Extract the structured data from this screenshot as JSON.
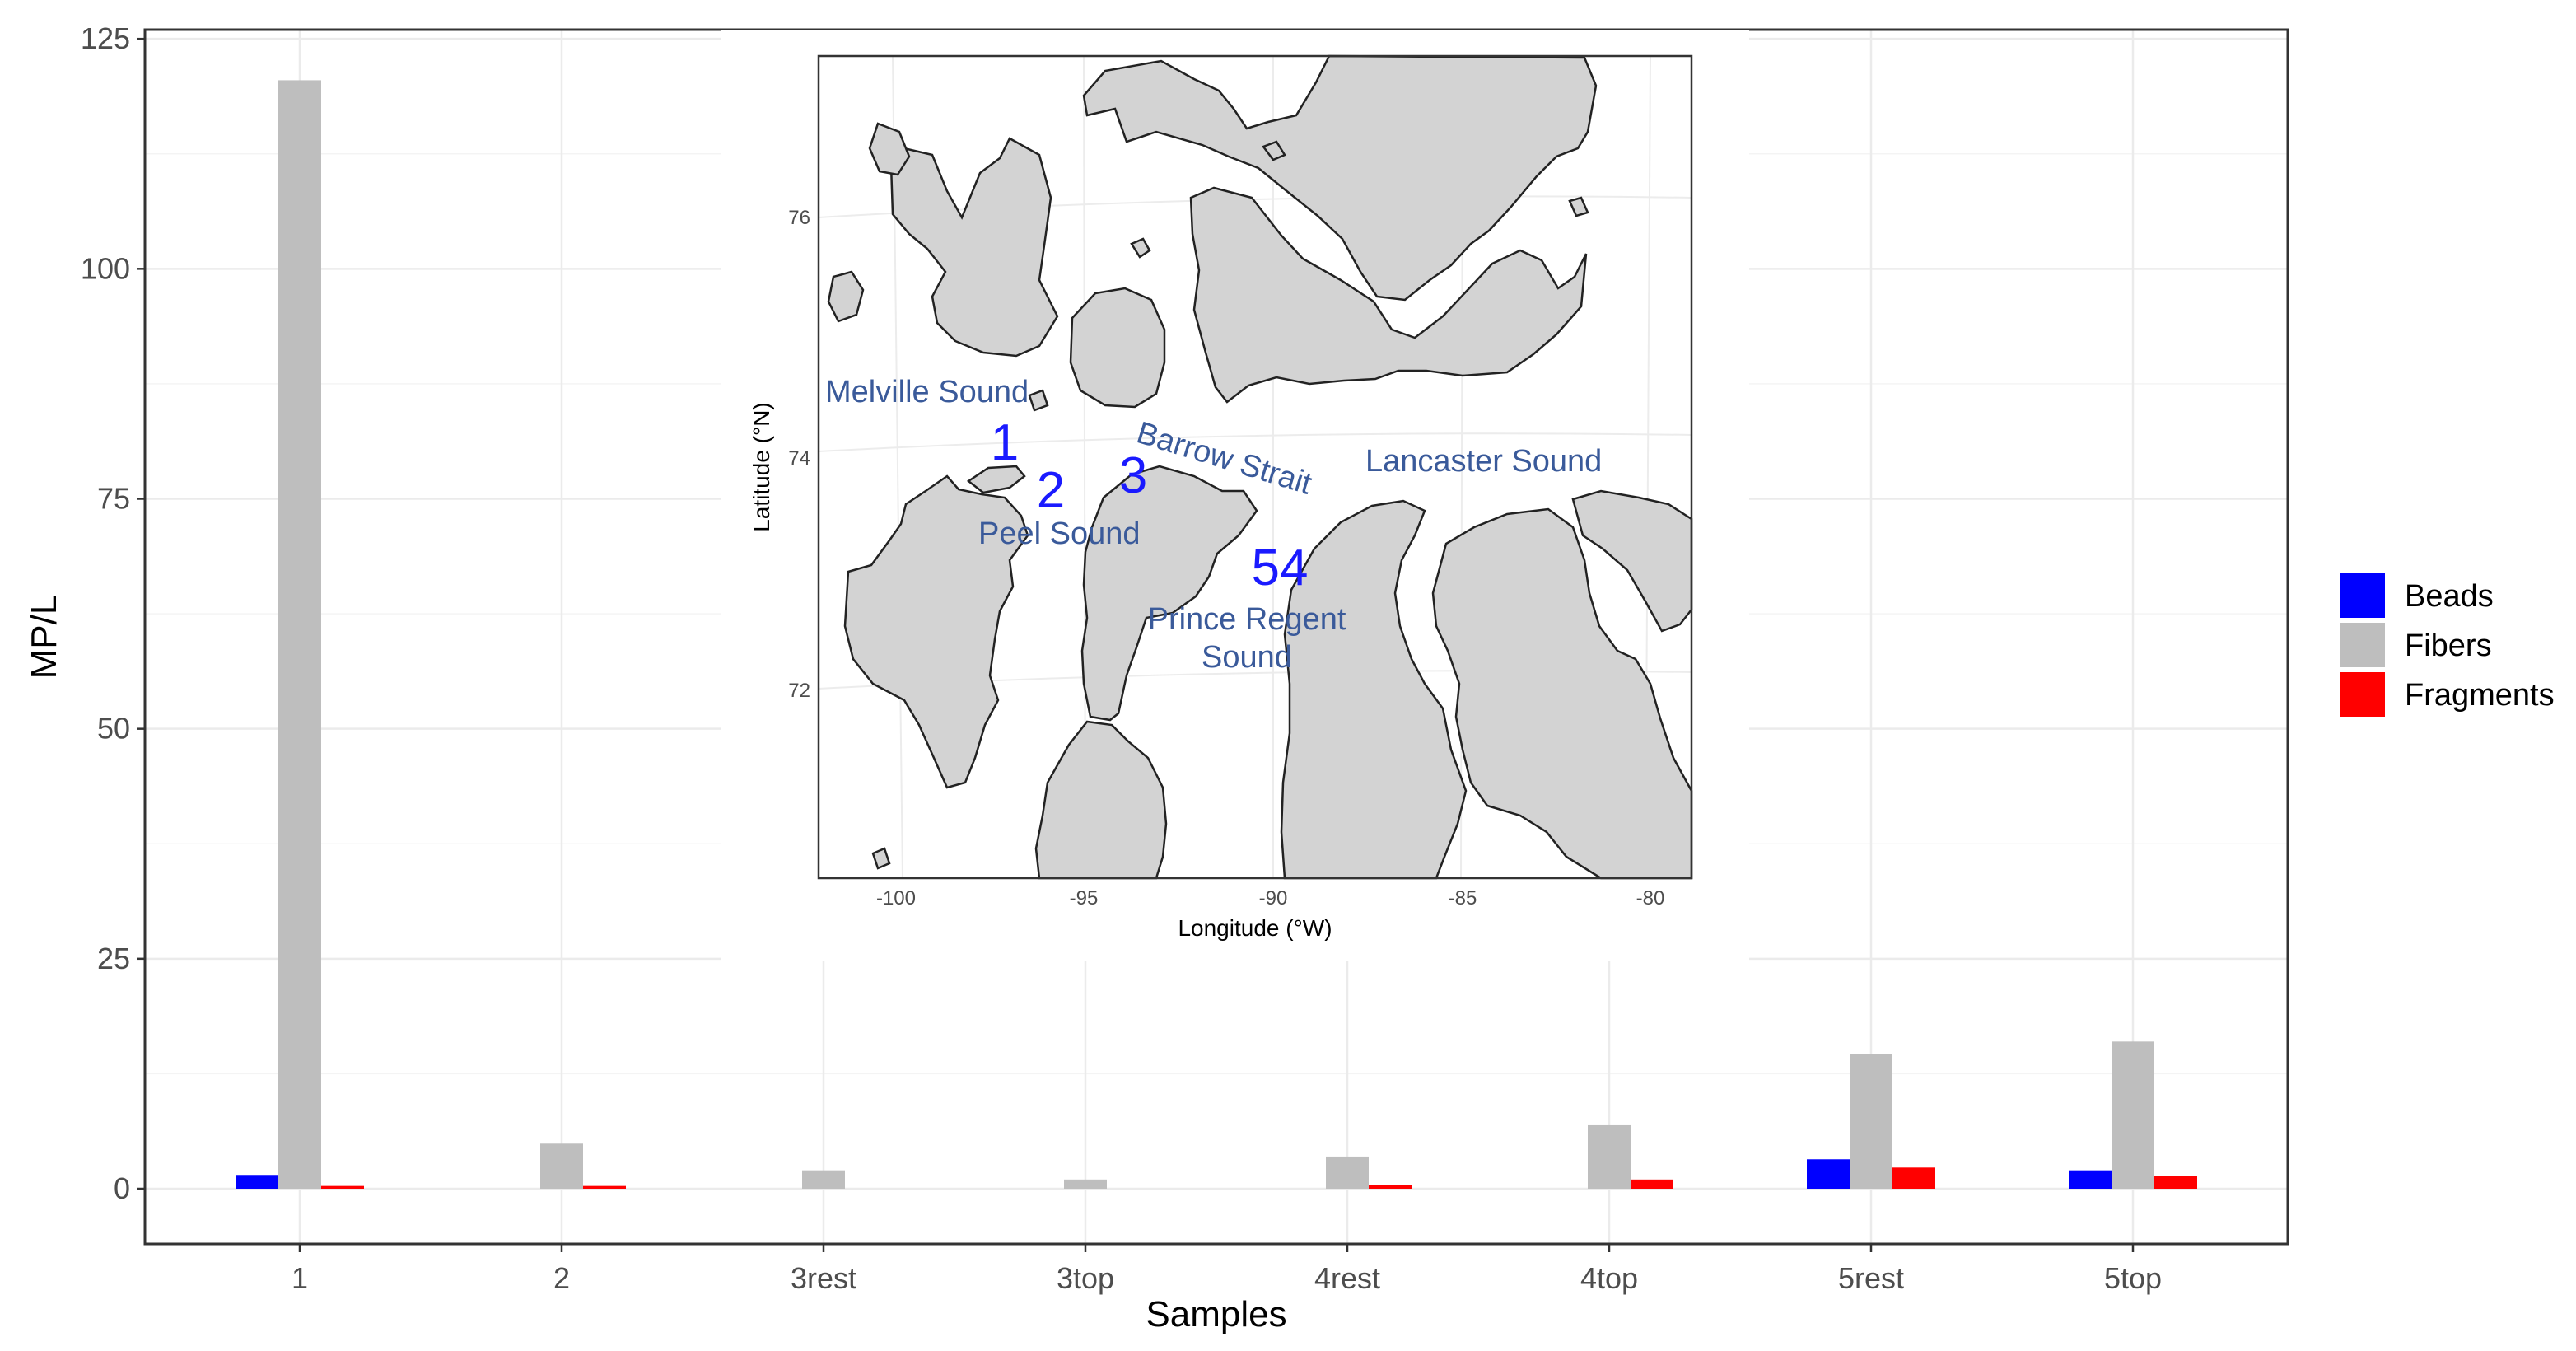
{
  "chart_data": {
    "type": "bar",
    "categories": [
      "1",
      "2",
      "3rest",
      "3top",
      "4rest",
      "4top",
      "5rest",
      "5top"
    ],
    "series": [
      {
        "name": "Beads",
        "color": "#0000ff",
        "values": [
          1.5,
          0,
          0,
          0,
          0,
          0,
          3.2,
          2.0
        ]
      },
      {
        "name": "Fibers",
        "color": "#bebebe",
        "values": [
          120.5,
          4.9,
          2.0,
          1.0,
          3.5,
          6.9,
          14.6,
          16.0
        ]
      },
      {
        "name": "Fragments",
        "color": "#ff0000",
        "values": [
          0.3,
          0.3,
          0,
          0,
          0.4,
          1.0,
          2.3,
          1.4
        ]
      }
    ],
    "xlabel": "Samples",
    "ylabel": "MP/L",
    "ylim": [
      -6,
      126
    ],
    "yticks": [
      0,
      25,
      50,
      75,
      100,
      125
    ],
    "grid": true,
    "legend_position": "right"
  },
  "inset_map": {
    "xlabel": "Longitude (°W)",
    "ylabel": "Latitude (°N)",
    "xticks": [
      "-100",
      "-95",
      "-90",
      "-85",
      "-80"
    ],
    "yticks": [
      "76",
      "74",
      "72"
    ],
    "place_labels": [
      {
        "name": "melville",
        "text": "Melville  Sound"
      },
      {
        "name": "barrow",
        "text": "Barrow Strait"
      },
      {
        "name": "lancaster",
        "text": "Lancaster Sound"
      },
      {
        "name": "peel",
        "text": "Peel Sound"
      },
      {
        "name": "prince-regent-1",
        "text": "Prince Regent"
      },
      {
        "name": "prince-regent-2",
        "text": "Sound"
      }
    ],
    "site_labels": [
      {
        "name": "site-1",
        "text": "1"
      },
      {
        "name": "site-2",
        "text": "2"
      },
      {
        "name": "site-3",
        "text": "3"
      },
      {
        "name": "site-54",
        "text": "54"
      }
    ]
  }
}
